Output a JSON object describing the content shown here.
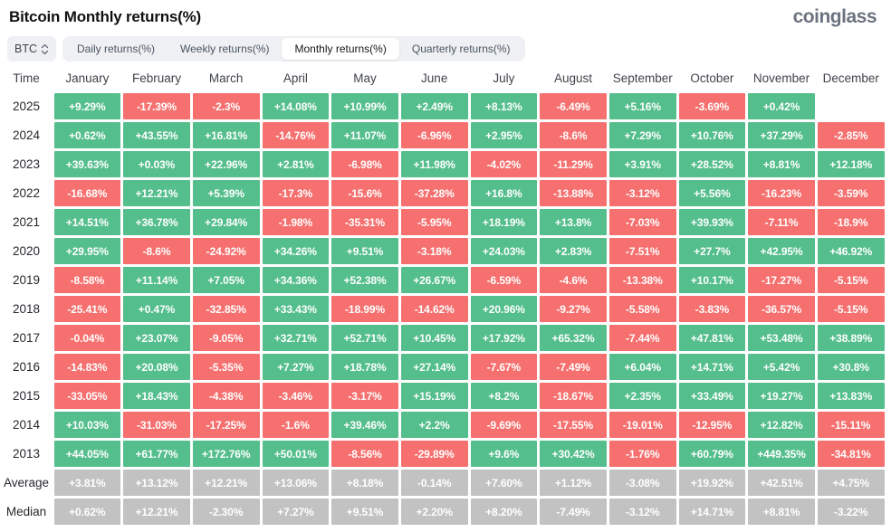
{
  "title": "Bitcoin Monthly returns(%)",
  "logo_text": "coinglass",
  "controls": {
    "symbol_label": "BTC",
    "tabs": [
      {
        "label": "Daily returns(%)",
        "active": false
      },
      {
        "label": "Weekly returns(%)",
        "active": false
      },
      {
        "label": "Monthly returns(%)",
        "active": true
      },
      {
        "label": "Quarterly returns(%)",
        "active": false
      }
    ]
  },
  "colors": {
    "positive": "#54be8c",
    "negative": "#f5706f",
    "summary": "#c2c2c2"
  },
  "table": {
    "time_header": "Time",
    "months": [
      "January",
      "February",
      "March",
      "April",
      "May",
      "June",
      "July",
      "August",
      "September",
      "October",
      "November",
      "December"
    ],
    "rows": [
      {
        "label": "2025",
        "type": "year",
        "values": [
          "+9.29%",
          "-17.39%",
          "-2.3%",
          "+14.08%",
          "+10.99%",
          "+2.49%",
          "+8.13%",
          "-6.49%",
          "+5.16%",
          "-3.69%",
          "+0.42%",
          ""
        ]
      },
      {
        "label": "2024",
        "type": "year",
        "values": [
          "+0.62%",
          "+43.55%",
          "+16.81%",
          "-14.76%",
          "+11.07%",
          "-6.96%",
          "+2.95%",
          "-8.6%",
          "+7.29%",
          "+10.76%",
          "+37.29%",
          "-2.85%"
        ]
      },
      {
        "label": "2023",
        "type": "year",
        "values": [
          "+39.63%",
          "+0.03%",
          "+22.96%",
          "+2.81%",
          "-6.98%",
          "+11.98%",
          "-4.02%",
          "-11.29%",
          "+3.91%",
          "+28.52%",
          "+8.81%",
          "+12.18%"
        ]
      },
      {
        "label": "2022",
        "type": "year",
        "values": [
          "-16.68%",
          "+12.21%",
          "+5.39%",
          "-17.3%",
          "-15.6%",
          "-37.28%",
          "+16.8%",
          "-13.88%",
          "-3.12%",
          "+5.56%",
          "-16.23%",
          "-3.59%"
        ]
      },
      {
        "label": "2021",
        "type": "year",
        "values": [
          "+14.51%",
          "+36.78%",
          "+29.84%",
          "-1.98%",
          "-35.31%",
          "-5.95%",
          "+18.19%",
          "+13.8%",
          "-7.03%",
          "+39.93%",
          "-7.11%",
          "-18.9%"
        ]
      },
      {
        "label": "2020",
        "type": "year",
        "values": [
          "+29.95%",
          "-8.6%",
          "-24.92%",
          "+34.26%",
          "+9.51%",
          "-3.18%",
          "+24.03%",
          "+2.83%",
          "-7.51%",
          "+27.7%",
          "+42.95%",
          "+46.92%"
        ]
      },
      {
        "label": "2019",
        "type": "year",
        "values": [
          "-8.58%",
          "+11.14%",
          "+7.05%",
          "+34.36%",
          "+52.38%",
          "+26.67%",
          "-6.59%",
          "-4.6%",
          "-13.38%",
          "+10.17%",
          "-17.27%",
          "-5.15%"
        ]
      },
      {
        "label": "2018",
        "type": "year",
        "values": [
          "-25.41%",
          "+0.47%",
          "-32.85%",
          "+33.43%",
          "-18.99%",
          "-14.62%",
          "+20.96%",
          "-9.27%",
          "-5.58%",
          "-3.83%",
          "-36.57%",
          "-5.15%"
        ]
      },
      {
        "label": "2017",
        "type": "year",
        "values": [
          "-0.04%",
          "+23.07%",
          "-9.05%",
          "+32.71%",
          "+52.71%",
          "+10.45%",
          "+17.92%",
          "+65.32%",
          "-7.44%",
          "+47.81%",
          "+53.48%",
          "+38.89%"
        ]
      },
      {
        "label": "2016",
        "type": "year",
        "values": [
          "-14.83%",
          "+20.08%",
          "-5.35%",
          "+7.27%",
          "+18.78%",
          "+27.14%",
          "-7.67%",
          "-7.49%",
          "+6.04%",
          "+14.71%",
          "+5.42%",
          "+30.8%"
        ]
      },
      {
        "label": "2015",
        "type": "year",
        "values": [
          "-33.05%",
          "+18.43%",
          "-4.38%",
          "-3.46%",
          "-3.17%",
          "+15.19%",
          "+8.2%",
          "-18.67%",
          "+2.35%",
          "+33.49%",
          "+19.27%",
          "+13.83%"
        ]
      },
      {
        "label": "2014",
        "type": "year",
        "values": [
          "+10.03%",
          "-31.03%",
          "-17.25%",
          "-1.6%",
          "+39.46%",
          "+2.2%",
          "-9.69%",
          "-17.55%",
          "-19.01%",
          "-12.95%",
          "+12.82%",
          "-15.11%"
        ]
      },
      {
        "label": "2013",
        "type": "year",
        "values": [
          "+44.05%",
          "+61.77%",
          "+172.76%",
          "+50.01%",
          "-8.56%",
          "-29.89%",
          "+9.6%",
          "+30.42%",
          "-1.76%",
          "+60.79%",
          "+449.35%",
          "-34.81%"
        ]
      },
      {
        "label": "Average",
        "type": "summary",
        "values": [
          "+3.81%",
          "+13.12%",
          "+12.21%",
          "+13.06%",
          "+8.18%",
          "-0.14%",
          "+7.60%",
          "+1.12%",
          "-3.08%",
          "+19.92%",
          "+42.51%",
          "+4.75%"
        ]
      },
      {
        "label": "Median",
        "type": "summary",
        "values": [
          "+0.62%",
          "+12.21%",
          "-2.30%",
          "+7.27%",
          "+9.51%",
          "+2.20%",
          "+8.20%",
          "-7.49%",
          "-3.12%",
          "+14.71%",
          "+8.81%",
          "-3.22%"
        ]
      }
    ]
  }
}
